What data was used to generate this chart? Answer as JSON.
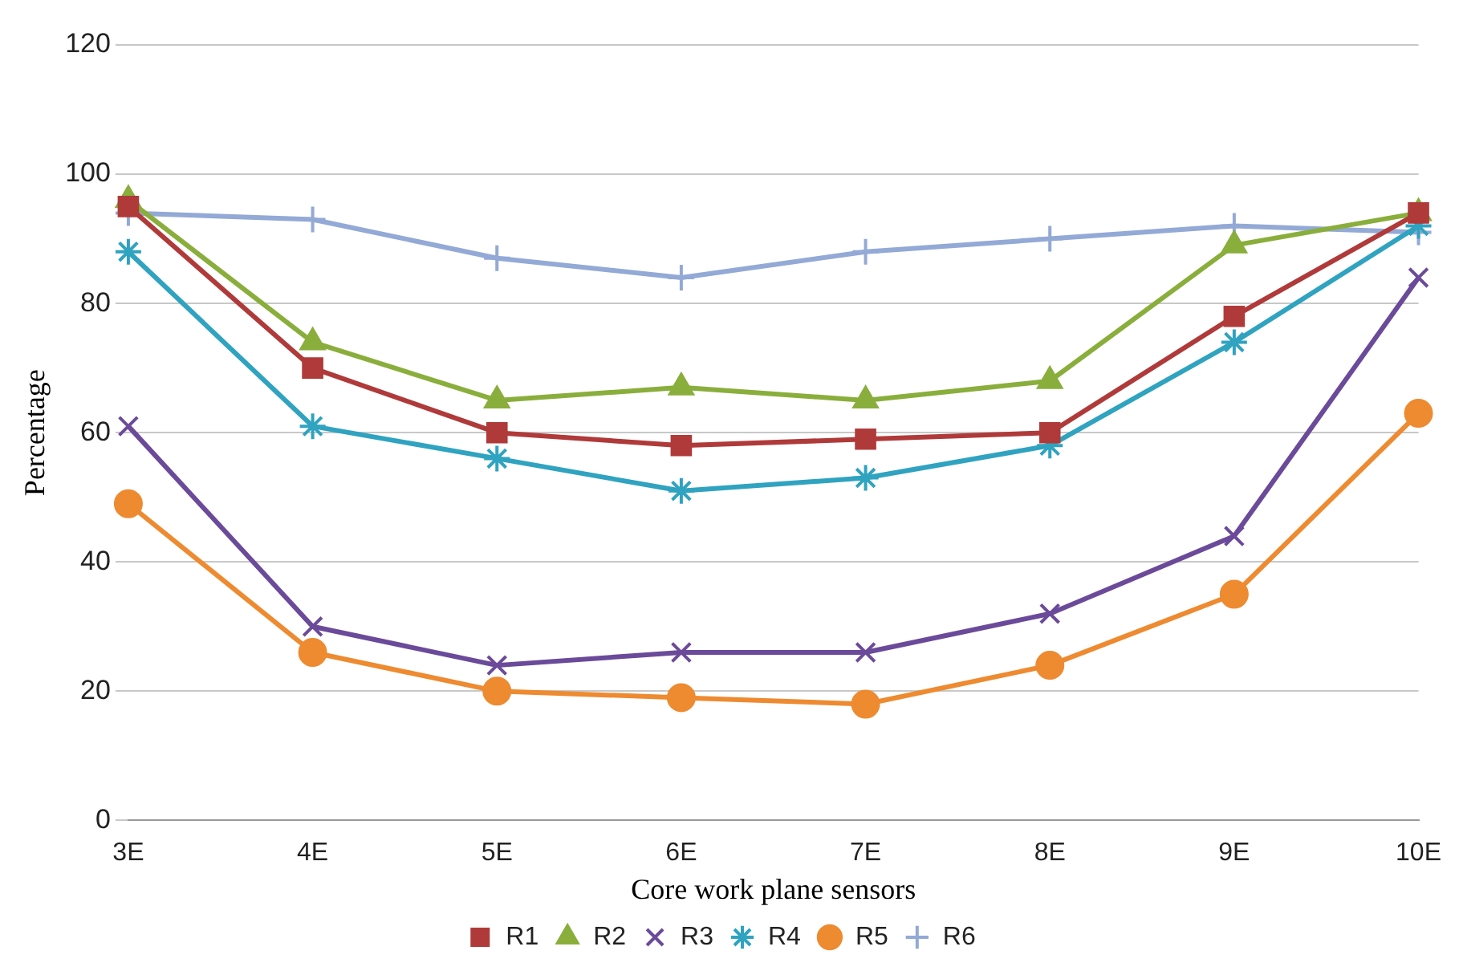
{
  "chart_data": {
    "type": "line",
    "xlabel": "Core work plane sensors",
    "ylabel": "Percentage",
    "categories": [
      "3E",
      "4E",
      "5E",
      "6E",
      "7E",
      "8E",
      "9E",
      "10E"
    ],
    "ylim": [
      0,
      120
    ],
    "yticks": [
      0,
      20,
      40,
      60,
      80,
      100,
      120
    ],
    "grid": "y",
    "legend": "bottom",
    "series": [
      {
        "name": "R1",
        "color": "#b03a3a",
        "marker": "square",
        "values": [
          95,
          70,
          60,
          58,
          59,
          60,
          78,
          94
        ]
      },
      {
        "name": "R2",
        "color": "#8aae3c",
        "marker": "triangle",
        "values": [
          96,
          74,
          65,
          67,
          65,
          68,
          89,
          94
        ]
      },
      {
        "name": "R3",
        "color": "#6b4a9a",
        "marker": "cross",
        "values": [
          61,
          30,
          24,
          26,
          26,
          32,
          44,
          84
        ]
      },
      {
        "name": "R4",
        "color": "#2fa3c0",
        "marker": "cross",
        "values": [
          88,
          61,
          56,
          51,
          53,
          58,
          74,
          92
        ]
      },
      {
        "name": "R5",
        "color": "#ee8a30",
        "marker": "circle",
        "values": [
          49,
          26,
          20,
          19,
          18,
          24,
          35,
          63
        ]
      },
      {
        "name": "R6",
        "color": "#93a9d6",
        "marker": "cross",
        "values": [
          94,
          93,
          87,
          84,
          88,
          90,
          92,
          91
        ]
      }
    ]
  }
}
